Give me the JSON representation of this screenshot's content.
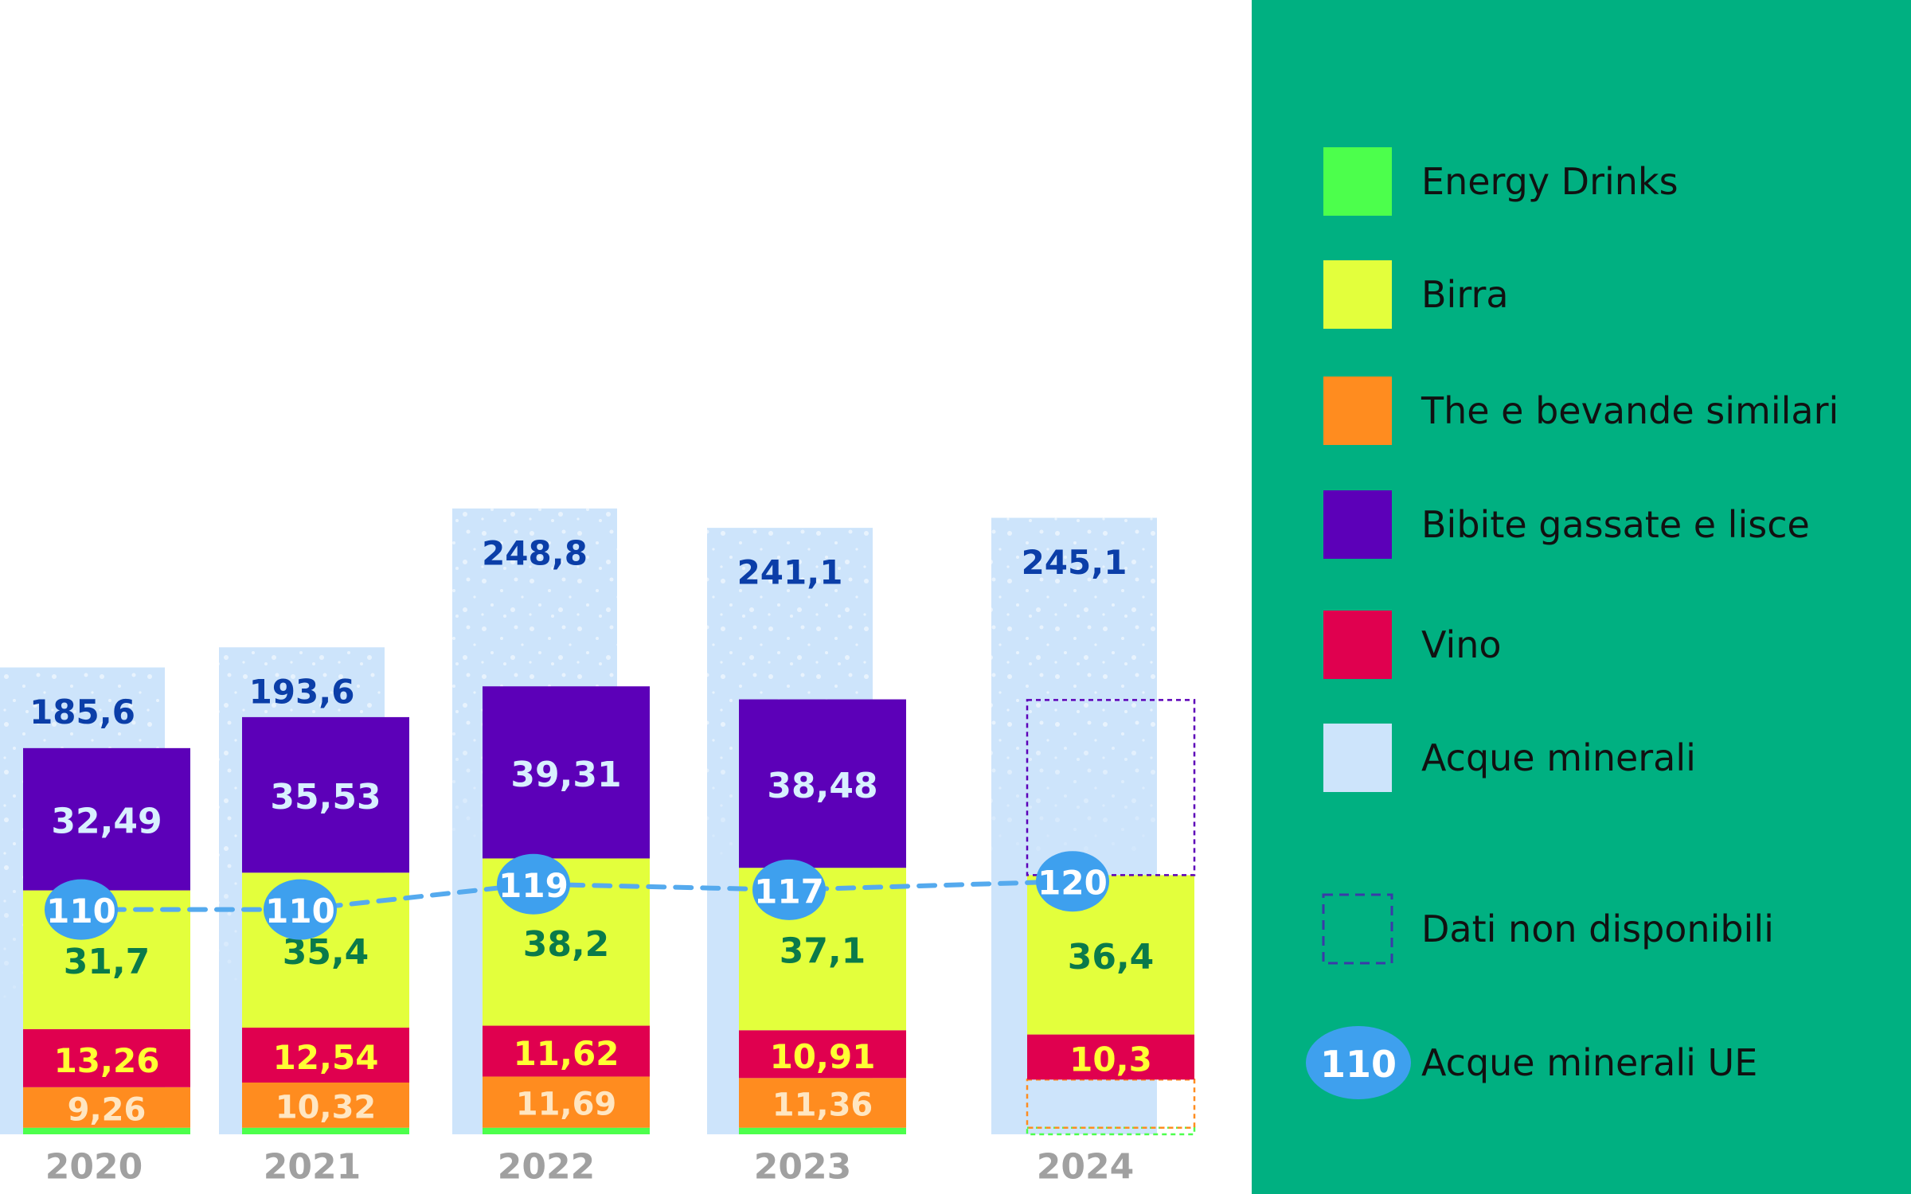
{
  "chart_data": {
    "type": "bar",
    "categories": [
      "2020",
      "2021",
      "2022",
      "2023",
      "2024"
    ],
    "mineral_water_totals": [
      185.6,
      193.6,
      248.8,
      241.1,
      245.1
    ],
    "mineral_water_totals_labels": [
      "185,6",
      "193,6",
      "248,8",
      "241,1",
      "245,1"
    ],
    "series": [
      {
        "name": "Energy Drinks",
        "values": [
          1.5,
          1.5,
          1.5,
          1.5,
          null
        ],
        "labels": [
          "",
          "",
          "",
          "",
          ""
        ]
      },
      {
        "name": "The e bevande similari",
        "values": [
          9.26,
          10.32,
          11.69,
          11.36,
          null
        ],
        "labels": [
          "9,26",
          "10,32",
          "11,69",
          "11,36",
          ""
        ]
      },
      {
        "name": "Vino",
        "values": [
          13.26,
          12.54,
          11.62,
          10.91,
          10.3
        ],
        "labels": [
          "13,26",
          "12,54",
          "11,62",
          "10,91",
          "10,3"
        ]
      },
      {
        "name": "Birra",
        "values": [
          31.7,
          35.4,
          38.2,
          37.1,
          36.4
        ],
        "labels": [
          "31,7",
          "35,4",
          "38,2",
          "37,1",
          "36,4"
        ]
      },
      {
        "name": "Bibite gassate e lisce",
        "values": [
          32.49,
          35.53,
          39.31,
          38.48,
          null
        ],
        "labels": [
          "32,49",
          "35,53",
          "39,31",
          "38,48",
          ""
        ]
      }
    ],
    "eu_line": {
      "name": "Acque minerali UE",
      "values": [
        110,
        110,
        119,
        117,
        120
      ],
      "labels": [
        "110",
        "110",
        "119",
        "117",
        "120"
      ]
    },
    "legend": {
      "placement": "right",
      "items": [
        {
          "label": "Energy Drinks",
          "color": "#4cff4c",
          "style": "solid"
        },
        {
          "label": "Birra",
          "color": "#e3ff3c",
          "style": "solid"
        },
        {
          "label": "The e bevande similari",
          "color": "#ff8c1f",
          "style": "solid"
        },
        {
          "label": "Bibite gassate e lisce",
          "color": "#5c00b8",
          "style": "solid"
        },
        {
          "label": "Vino",
          "color": "#e0004f",
          "style": "solid"
        },
        {
          "label": "Acque minerali",
          "color": "#cde4fb",
          "style": "solid"
        },
        {
          "label": "Dati non disponibili",
          "color": "#3a3aa8",
          "style": "dashed"
        },
        {
          "label": "Acque minerali UE",
          "color": "#3ea0ee",
          "style": "badge",
          "badge_text": "110"
        }
      ]
    },
    "colors": {
      "water_bar": "#cde4fb",
      "water_label": "#0b3ea8",
      "energy": "#4cff4c",
      "tea": "#ff8c1f",
      "tea_label": "#ffe6c2",
      "wine": "#e0004f",
      "wine_label": "#ffff33",
      "beer": "#e3ff3c",
      "beer_label": "#0a7a4a",
      "soft": "#5c00b8",
      "soft_label": "#d8f0ff",
      "eu_badge": "#3ea0ee",
      "eu_line": "#55aaee",
      "year_label": "#a0a0a0",
      "legend_panel": "#00b081",
      "legend_text": "#111111"
    },
    "xlabel": "",
    "ylabel": "",
    "grid": false
  }
}
